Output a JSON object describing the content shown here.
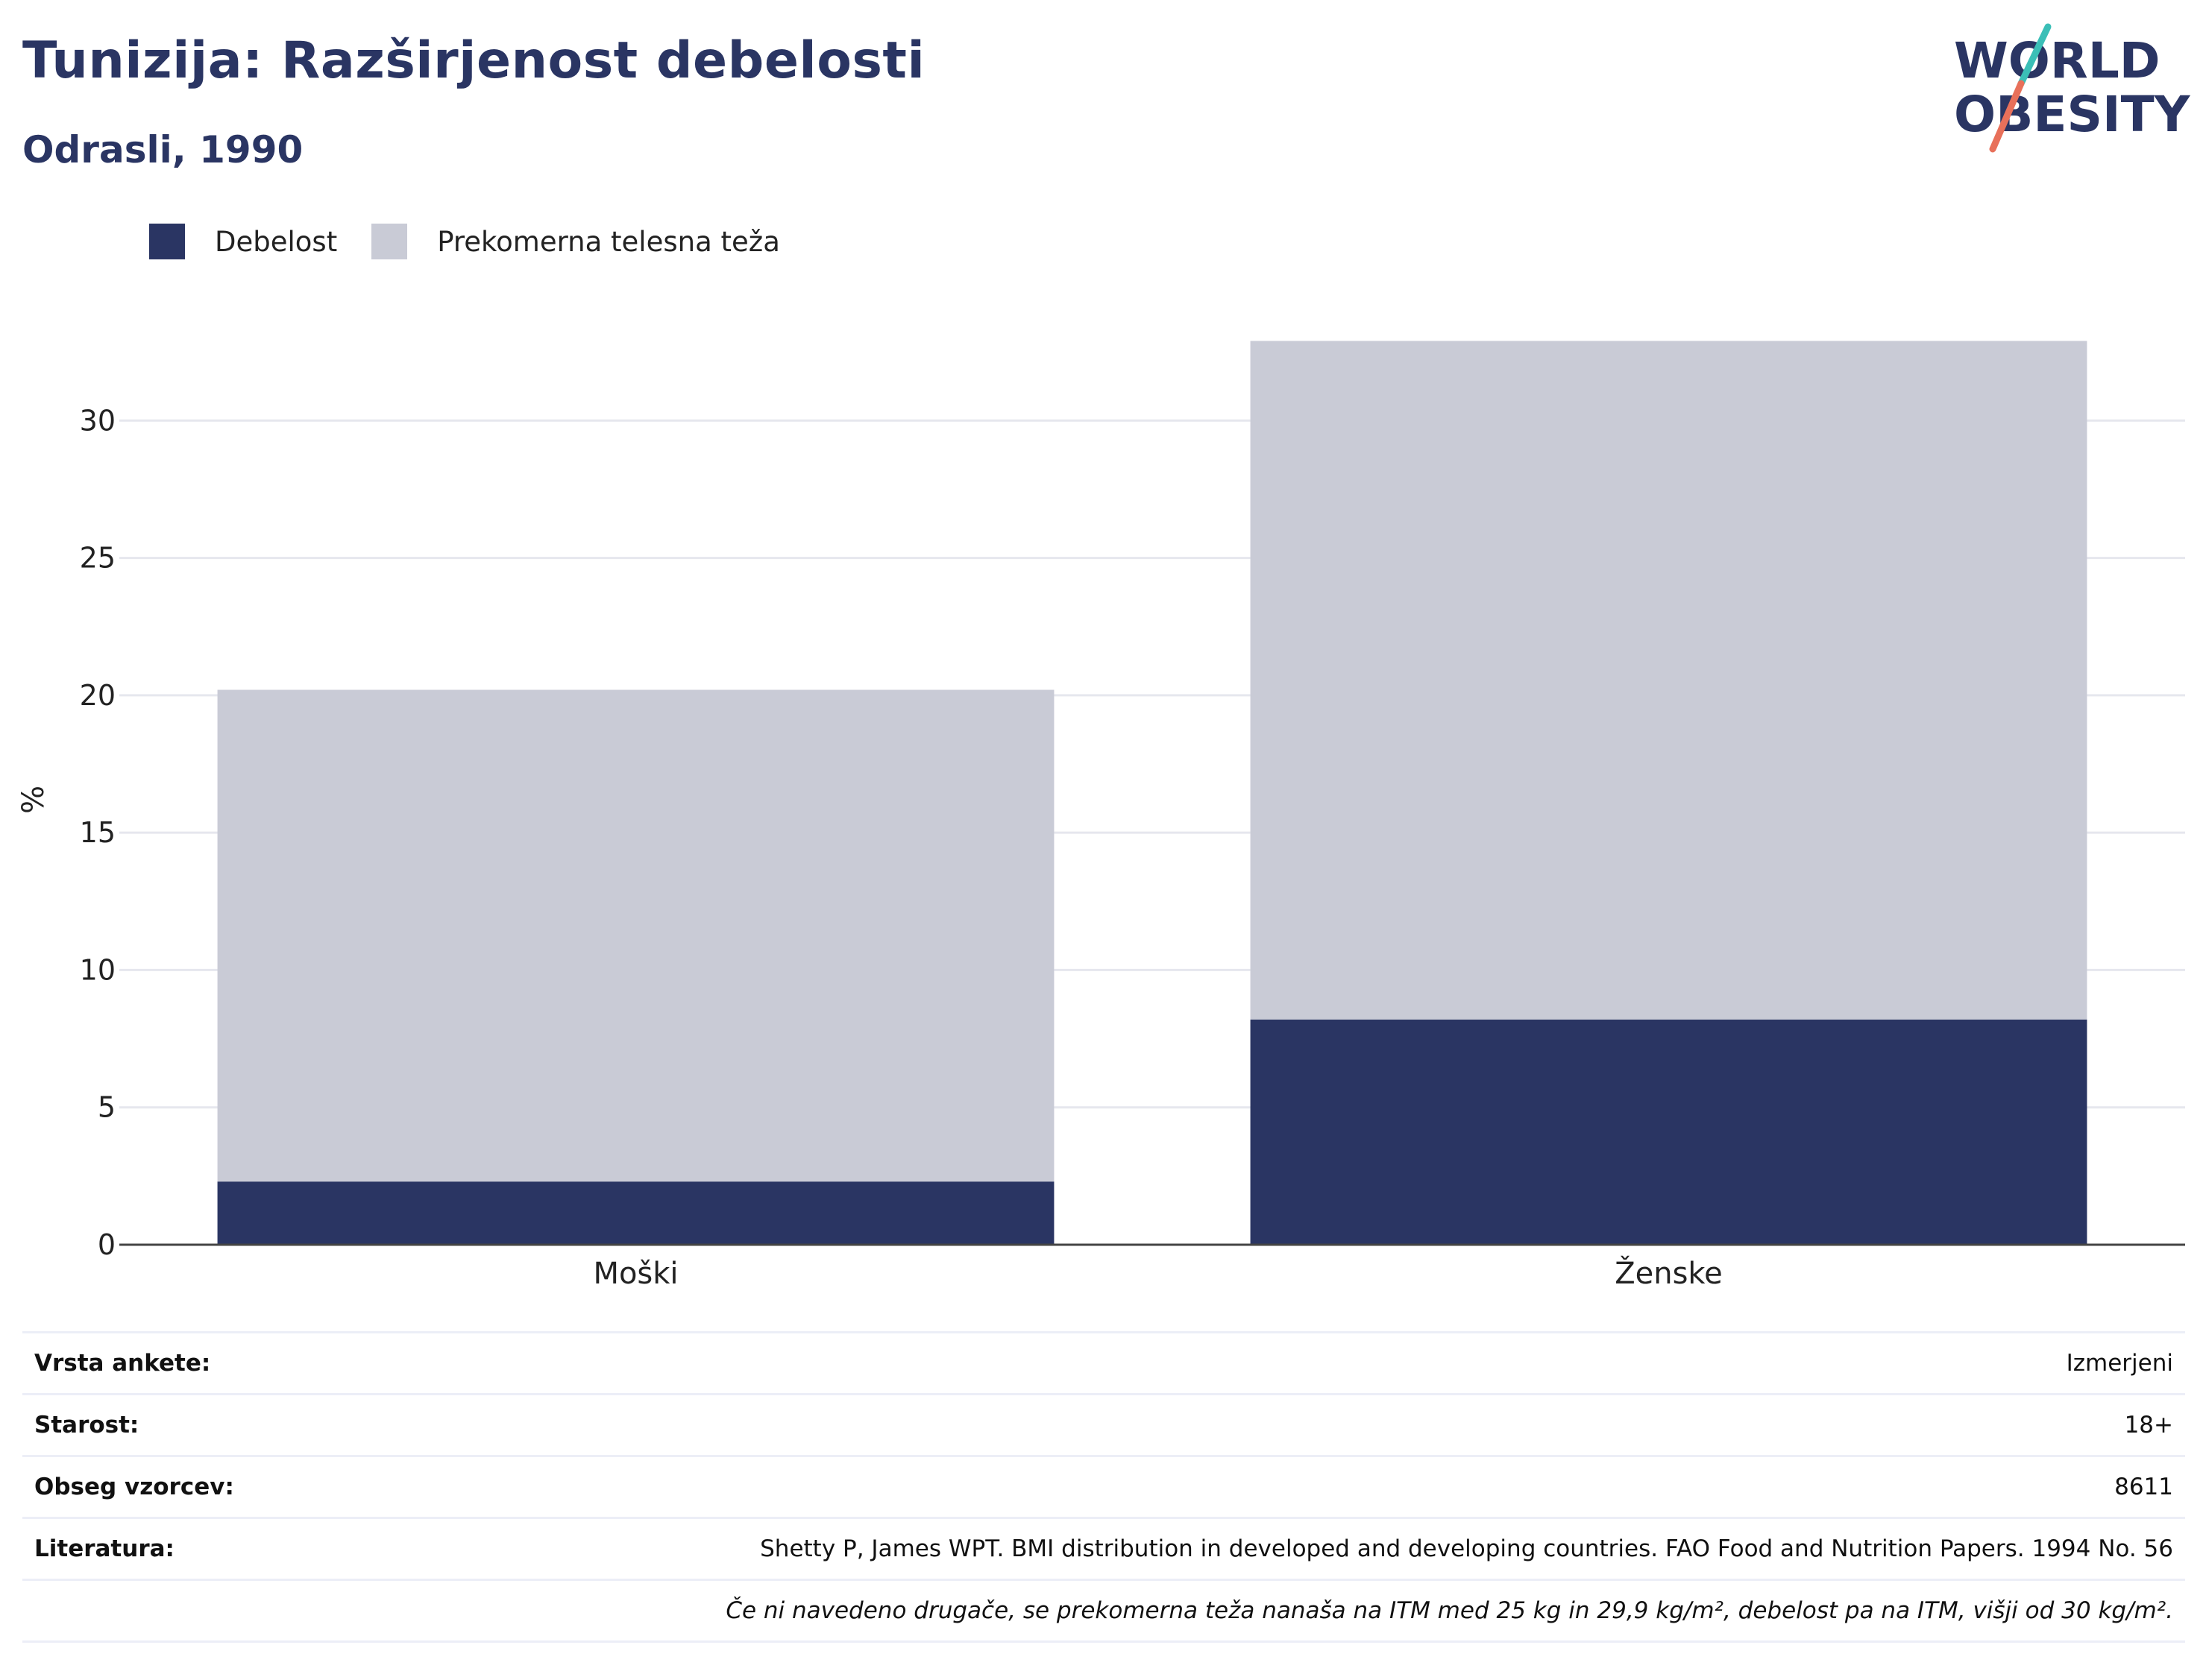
{
  "header": {
    "title": "Tunizija: Razširjenost debelosti",
    "subtitle": "Odrasli, 1990"
  },
  "logo": {
    "line1": "WORLD",
    "line2": "OBESITY",
    "accent_teal": "#3bbfb7",
    "accent_coral": "#e8705a"
  },
  "legend": [
    {
      "label": "Debelost",
      "color": "#2a3563"
    },
    {
      "label": "Prekomerna telesna teža",
      "color": "#c9cbd6"
    }
  ],
  "chart_data": {
    "type": "bar",
    "stacked": true,
    "categories": [
      "Moški",
      "Ženske"
    ],
    "series": [
      {
        "name": "Debelost",
        "values": [
          2.3,
          8.2
        ],
        "color": "#2a3563"
      },
      {
        "name": "Prekomerna telesna teža",
        "values": [
          17.9,
          24.7
        ],
        "color": "#c9cbd6"
      }
    ],
    "ylabel": "%",
    "ylim": [
      0,
      35
    ],
    "yticks": [
      0,
      5,
      10,
      15,
      20,
      25,
      30
    ],
    "grid": true,
    "legend_position": "top-left"
  },
  "info": {
    "rows": [
      {
        "label": "Vrsta ankete:",
        "value": "Izmerjeni"
      },
      {
        "label": "Starost:",
        "value": "18+"
      },
      {
        "label": "Obseg vzorcev:",
        "value": "8611"
      },
      {
        "label": "Literatura:",
        "value": "Shetty P, James WPT. BMI distribution in developed and developing countries. FAO Food and Nutrition Papers. 1994 No. 56"
      }
    ],
    "note": "Če ni navedeno drugače, se prekomerna teža nanaša na ITM med 25 kg in 29,9 kg/m², debelost pa na ITM, višji od 30 kg/m²."
  }
}
